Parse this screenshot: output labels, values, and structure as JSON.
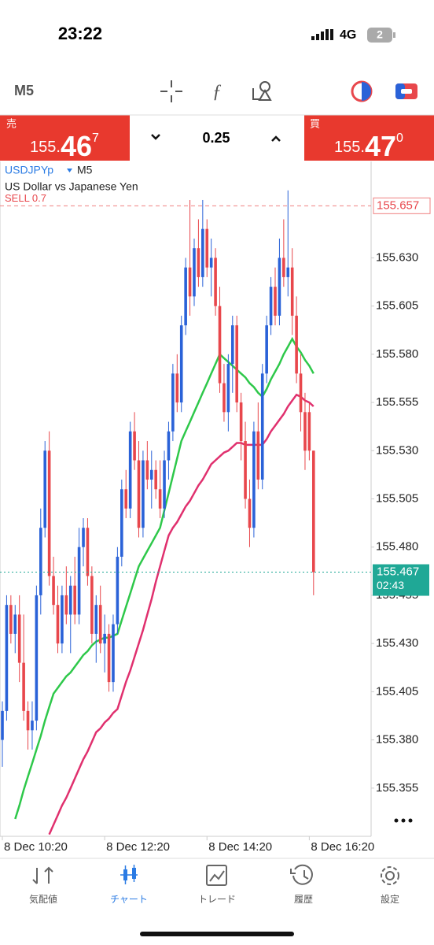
{
  "status_bar": {
    "time": "23:22",
    "network": "4G",
    "badge": "2"
  },
  "toolbar": {
    "timeframe": "M5"
  },
  "quote": {
    "sell": {
      "label": "売",
      "price_head": "155.",
      "price_big": "46",
      "price_small": "7"
    },
    "spread": "0.25",
    "buy": {
      "label": "買",
      "price_head": "155.",
      "price_big": "47",
      "price_small": "0"
    }
  },
  "chart": {
    "type": "candlestick",
    "symbol": "USDJPYp",
    "timeframe": "M5",
    "description": "US Dollar vs Japanese Yen",
    "up_color": "#2a62d8",
    "down_color": "#e8474c",
    "candles": [
      [
        155.38,
        155.4,
        155.366,
        155.395
      ],
      [
        155.395,
        155.455,
        155.39,
        155.45
      ],
      [
        155.45,
        155.455,
        155.43,
        155.435
      ],
      [
        155.435,
        155.45,
        155.425,
        155.445
      ],
      [
        155.445,
        155.455,
        155.41,
        155.42
      ],
      [
        155.42,
        155.445,
        155.39,
        155.395
      ],
      [
        155.395,
        155.4,
        155.375,
        155.385
      ],
      [
        155.385,
        155.4,
        155.375,
        155.39
      ],
      [
        155.39,
        155.46,
        155.385,
        155.455
      ],
      [
        155.455,
        155.5,
        155.445,
        155.49
      ],
      [
        155.49,
        155.535,
        155.485,
        155.53
      ],
      [
        155.53,
        155.54,
        155.46,
        155.465
      ],
      [
        155.465,
        155.475,
        155.445,
        155.45
      ],
      [
        155.45,
        155.46,
        155.425,
        155.43
      ],
      [
        155.43,
        155.46,
        155.425,
        155.455
      ],
      [
        155.455,
        155.47,
        155.44,
        155.445
      ],
      [
        155.445,
        155.465,
        155.425,
        155.46
      ],
      [
        155.46,
        155.475,
        155.44,
        155.445
      ],
      [
        155.445,
        155.49,
        155.44,
        155.48
      ],
      [
        155.48,
        155.495,
        155.47,
        155.49
      ],
      [
        155.49,
        155.495,
        155.46,
        155.465
      ],
      [
        155.465,
        155.47,
        155.43,
        155.435
      ],
      [
        155.435,
        155.455,
        155.42,
        155.45
      ],
      [
        155.45,
        155.46,
        155.425,
        155.43
      ],
      [
        155.43,
        155.445,
        155.415,
        155.435
      ],
      [
        155.435,
        155.44,
        155.405,
        155.41
      ],
      [
        155.41,
        155.445,
        155.405,
        155.44
      ],
      [
        155.44,
        155.48,
        155.435,
        155.475
      ],
      [
        155.475,
        155.515,
        155.47,
        155.51
      ],
      [
        155.51,
        155.52,
        155.495,
        155.5
      ],
      [
        155.5,
        155.545,
        155.495,
        155.54
      ],
      [
        155.54,
        155.55,
        155.52,
        155.525
      ],
      [
        155.525,
        155.535,
        155.485,
        155.49
      ],
      [
        155.49,
        155.53,
        155.485,
        155.525
      ],
      [
        155.525,
        155.535,
        155.51,
        155.515
      ],
      [
        155.515,
        155.53,
        155.5,
        155.52
      ],
      [
        155.52,
        155.525,
        155.505,
        155.51
      ],
      [
        155.51,
        155.525,
        155.495,
        155.5
      ],
      [
        155.5,
        155.53,
        155.495,
        155.525
      ],
      [
        155.525,
        155.545,
        155.515,
        155.54
      ],
      [
        155.54,
        155.575,
        155.535,
        155.57
      ],
      [
        155.57,
        155.58,
        155.55,
        155.555
      ],
      [
        155.555,
        155.6,
        155.55,
        155.595
      ],
      [
        155.595,
        155.63,
        155.59,
        155.625
      ],
      [
        155.625,
        155.66,
        155.6,
        155.61
      ],
      [
        155.61,
        155.64,
        155.605,
        155.635
      ],
      [
        155.635,
        155.65,
        155.615,
        155.62
      ],
      [
        155.62,
        155.66,
        155.615,
        155.645
      ],
      [
        155.645,
        155.65,
        155.62,
        155.625
      ],
      [
        155.625,
        155.64,
        155.61,
        155.63
      ],
      [
        155.63,
        155.635,
        155.6,
        155.605
      ],
      [
        155.605,
        155.615,
        155.56,
        155.565
      ],
      [
        155.565,
        155.575,
        155.545,
        155.55
      ],
      [
        155.55,
        155.58,
        155.54,
        155.575
      ],
      [
        155.575,
        155.6,
        155.56,
        155.595
      ],
      [
        155.595,
        155.6,
        155.55,
        155.555
      ],
      [
        155.555,
        155.56,
        155.525,
        155.535
      ],
      [
        155.535,
        155.545,
        155.5,
        155.505
      ],
      [
        155.505,
        155.515,
        155.48,
        155.49
      ],
      [
        155.49,
        155.545,
        155.485,
        155.54
      ],
      [
        155.54,
        155.555,
        155.51,
        155.515
      ],
      [
        155.515,
        155.575,
        155.51,
        155.57
      ],
      [
        155.57,
        155.6,
        155.565,
        155.595
      ],
      [
        155.595,
        155.62,
        155.59,
        155.615
      ],
      [
        155.615,
        155.625,
        155.595,
        155.6
      ],
      [
        155.6,
        155.64,
        155.595,
        155.63
      ],
      [
        155.63,
        155.65,
        155.615,
        155.62
      ],
      [
        155.62,
        155.665,
        155.61,
        155.625
      ],
      [
        155.625,
        155.635,
        155.59,
        155.6
      ],
      [
        155.6,
        155.61,
        155.565,
        155.57
      ],
      [
        155.57,
        155.58,
        155.54,
        155.55
      ],
      [
        155.55,
        155.56,
        155.52,
        155.53
      ],
      [
        155.55,
        155.555,
        155.525,
        155.53
      ],
      [
        155.53,
        155.53,
        155.455,
        155.467
      ]
    ],
    "series": [
      {
        "color": "#2ec84a",
        "values": [
          null,
          null,
          null,
          155.339,
          155.346,
          155.354,
          155.361,
          155.368,
          155.375,
          155.382,
          155.39,
          155.397,
          155.404,
          155.407,
          155.41,
          155.413,
          155.415,
          155.418,
          155.421,
          155.424,
          155.426,
          155.429,
          155.431,
          155.432,
          155.433,
          155.433,
          155.434,
          155.435,
          155.442,
          155.449,
          155.456,
          155.463,
          155.47,
          155.474,
          155.478,
          155.482,
          155.486,
          155.49,
          155.499,
          155.508,
          155.517,
          155.526,
          155.535,
          155.54,
          155.545,
          155.55,
          155.555,
          155.56,
          155.565,
          155.57,
          155.575,
          155.58,
          155.578,
          155.576,
          155.574,
          155.572,
          155.57,
          155.568,
          155.565,
          155.563,
          155.56,
          155.558,
          155.562,
          155.567,
          155.571,
          155.575,
          155.58,
          155.584,
          155.588,
          155.584,
          155.581,
          155.577,
          155.574,
          155.57
        ]
      },
      {
        "color": "#e0306e",
        "values": [
          null,
          null,
          null,
          null,
          null,
          null,
          null,
          null,
          null,
          null,
          null,
          155.331,
          155.336,
          155.341,
          155.346,
          155.35,
          155.355,
          155.36,
          155.365,
          155.37,
          155.374,
          155.379,
          155.384,
          155.386,
          155.389,
          155.391,
          155.394,
          155.396,
          155.403,
          155.41,
          155.416,
          155.423,
          155.43,
          155.437,
          155.445,
          155.453,
          155.462,
          155.47,
          155.478,
          155.486,
          155.49,
          155.493,
          155.497,
          155.501,
          155.504,
          155.508,
          155.512,
          155.515,
          155.519,
          155.523,
          155.525,
          155.527,
          155.529,
          155.53,
          155.532,
          155.534,
          155.534,
          155.533,
          155.533,
          155.533,
          155.533,
          155.533,
          155.536,
          155.54,
          155.543,
          155.546,
          155.549,
          155.553,
          155.556,
          155.559,
          155.558,
          155.556,
          155.555,
          155.553
        ]
      }
    ],
    "xlim": [
      0,
      86.5
    ],
    "ylim": [
      155.33,
      155.68
    ],
    "yticks": [
      155.355,
      {
        "value": 155.38,
        "label": "155.380"
      },
      155.405,
      {
        "value": 155.43,
        "label": "155.430"
      },
      155.455,
      {
        "value": 155.48,
        "label": "155.480"
      },
      155.505,
      {
        "value": 155.53,
        "label": "155.530"
      },
      155.555,
      {
        "value": 155.58,
        "label": "155.580"
      },
      155.605,
      {
        "value": 155.63,
        "label": "155.630"
      }
    ],
    "xticks": [
      {
        "value": 0,
        "label": "8 Dec 10:20"
      },
      {
        "value": 24,
        "label": "8 Dec 12:20"
      },
      {
        "value": 48,
        "label": "8 Dec 14:20"
      },
      {
        "value": 72,
        "label": "8 Dec 16:20"
      }
    ],
    "order_line": {
      "label": "SELL 0.7",
      "value": 155.657
    },
    "price_line": {
      "value": 155.467,
      "countdown": "02:43"
    }
  },
  "tabs": [
    {
      "label": "気配値"
    },
    {
      "label": "チャート"
    },
    {
      "label": "トレード"
    },
    {
      "label": "履歴"
    },
    {
      "label": "設定"
    }
  ],
  "active_tab": 1
}
